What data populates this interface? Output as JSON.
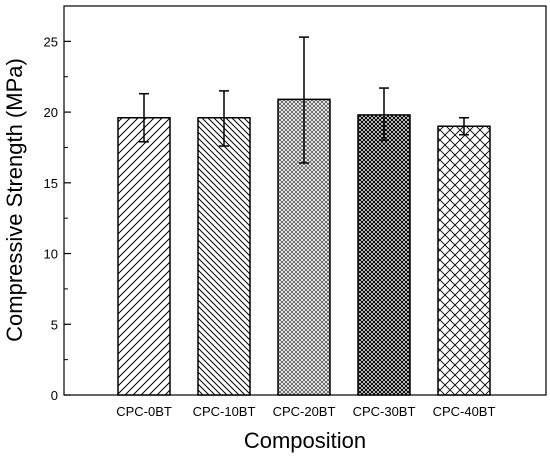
{
  "chart_data": {
    "type": "bar",
    "title": "",
    "xlabel": "Composition",
    "ylabel": "Compressive Strength (MPa)",
    "categories": [
      "CPC-0BT",
      "CPC-10BT",
      "CPC-20BT",
      "CPC-30BT",
      "CPC-40BT"
    ],
    "values": [
      19.6,
      19.6,
      20.9,
      19.8,
      19.0
    ],
    "error_upper": [
      21.3,
      21.5,
      25.3,
      21.7,
      19.6
    ],
    "error_lower": [
      17.9,
      17.6,
      16.4,
      18.0,
      18.4
    ],
    "patterns": [
      "diagonal-up",
      "diagonal-down",
      "dense-cross-dots",
      "dense-crosshatch",
      "diamond-crosshatch"
    ],
    "ylim": [
      0,
      27.5
    ],
    "yticks": [
      0,
      5,
      10,
      15,
      20,
      25
    ],
    "ytick_labels": [
      "0",
      "5",
      "10",
      "15",
      "20",
      "25"
    ],
    "grid": false,
    "legend": "none",
    "colors": {
      "bar_stroke": "#000000",
      "pattern": "#000000",
      "background": "#ffffff"
    }
  }
}
